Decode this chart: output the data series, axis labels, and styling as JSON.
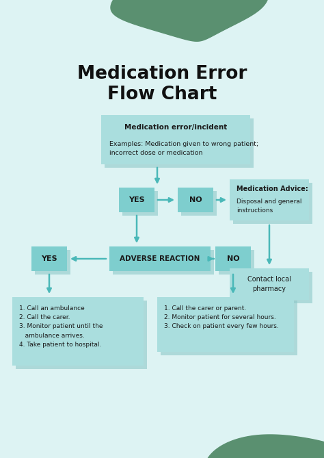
{
  "bg_color": "#ddf3f3",
  "title_line1": "Medication Error",
  "title_line2": "Flow Chart",
  "title_color": "#111111",
  "title_fontsize": 19,
  "blob_color": "#5a9070",
  "box_fill_light": "#aadede",
  "box_fill_medium": "#7ecece",
  "arrow_color": "#4ab8b8",
  "shadow_color": "#8ec8c8",
  "box_text_color": "#1a1a1a",
  "incident_bold": "Medication error/incident",
  "incident_normal": "Examples: Medication given to wrong patient;\nincorrect dose or medication",
  "yes1_label": "YES",
  "no1_label": "NO",
  "medadv_bold": "Medication Advice:",
  "medadv_normal": "Disposal and general\ninstructions",
  "adverse_label": "ADVERSE REACTION",
  "yes2_label": "YES",
  "no2_label": "NO",
  "pharmacy_label": "Contact local\npharmacy",
  "action_left": "1. Call an ambulance\n2. Call the carer.\n3. Monitor patient until the\n   ambulance arrives.\n4. Take patient to hospital.",
  "action_right": "1. Call the carer or parent.\n2. Monitor patient for several hours.\n3. Check on patient every few hours."
}
